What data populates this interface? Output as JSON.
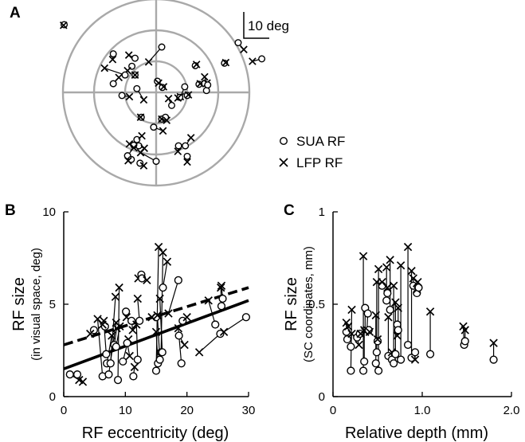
{
  "panels": {
    "a": {
      "letter": "A",
      "scale_bar_label": "10 deg"
    },
    "b": {
      "letter": "B"
    },
    "c": {
      "letter": "C"
    }
  },
  "legend": {
    "sua_label": "SUA RF",
    "lfp_label": "LFP RF"
  },
  "chart_data": [
    {
      "type": "scatter",
      "panel": "A",
      "description": "Polar plot of receptive field centers in visual space (deg), paired SUA (circle) and LFP (cross) RFs joined by lines",
      "rings_deg": [
        5,
        10,
        15
      ],
      "scale_bar_deg": 10,
      "pairs": [
        {
          "sua": [
            -14.8,
            10.9
          ],
          "lfp": [
            -14.9,
            10.8
          ]
        },
        {
          "sua": [
            -6.9,
            6.2
          ],
          "lfp": [
            -7.0,
            5.3
          ]
        },
        {
          "sua": [
            -3.4,
            5.5
          ],
          "lfp": [
            -4.4,
            6.0
          ]
        },
        {
          "sua": [
            -3.9,
            4.2
          ],
          "lfp": [
            -4.6,
            3.5
          ]
        },
        {
          "sua": [
            -5.0,
            2.8
          ],
          "lfp": [
            -8.3,
            3.9
          ]
        },
        {
          "sua": [
            -3.4,
            2.8
          ],
          "lfp": [
            -3.4,
            2.8
          ]
        },
        {
          "sua": [
            -6.9,
            1.4
          ],
          "lfp": [
            -6.0,
            2.4
          ]
        },
        {
          "sua": [
            0.9,
            7.3
          ],
          "lfp": [
            -1.2,
            4.9
          ]
        },
        {
          "sua": [
            -5.5,
            -0.5
          ],
          "lfp": [
            -4.3,
            -0.7
          ]
        },
        {
          "sua": [
            -3.1,
            0.6
          ],
          "lfp": [
            -2.0,
            -1.2
          ]
        },
        {
          "sua": [
            0.2,
            1.8
          ],
          "lfp": [
            0.4,
            1.5
          ]
        },
        {
          "sua": [
            1.0,
            0.8
          ],
          "lfp": [
            1.2,
            0.9
          ]
        },
        {
          "sua": [
            2.5,
            -2.1
          ],
          "lfp": [
            2.0,
            -1.0
          ]
        },
        {
          "sua": [
            4.6,
            0.9
          ],
          "lfp": [
            3.9,
            -0.7
          ]
        },
        {
          "sua": [
            3.8,
            -0.8
          ],
          "lfp": [
            3.5,
            -0.9
          ]
        },
        {
          "sua": [
            5.0,
            -0.5
          ],
          "lfp": [
            5.2,
            -0.4
          ]
        },
        {
          "sua": [
            8.1,
            0.3
          ],
          "lfp": [
            8.2,
            1.5
          ]
        },
        {
          "sua": [
            8.3,
            1.2
          ],
          "lfp": [
            7.8,
            2.5
          ]
        },
        {
          "sua": [
            6.3,
            4.3
          ],
          "lfp": [
            6.5,
            4.5
          ]
        },
        {
          "sua": [
            11.0,
            4.7
          ],
          "lfp": [
            11.2,
            4.8
          ]
        },
        {
          "sua": [
            6.9,
            1.3
          ],
          "lfp": [
            7.1,
            1.4
          ]
        },
        {
          "sua": [
            13.2,
            8.0
          ],
          "lfp": [
            14.1,
            6.9
          ]
        },
        {
          "sua": [
            17.0,
            5.4
          ],
          "lfp": [
            15.5,
            5.0
          ]
        },
        {
          "sua": [
            0.9,
            -4.3
          ],
          "lfp": [
            0.9,
            -4.3
          ]
        },
        {
          "sua": [
            1.5,
            -4.0
          ],
          "lfp": [
            1.7,
            -4.5
          ]
        },
        {
          "sua": [
            -0.4,
            -5.6
          ],
          "lfp": [
            1.1,
            -6.2
          ]
        },
        {
          "sua": [
            -3.1,
            -7.6
          ],
          "lfp": [
            -2.3,
            -7.0
          ]
        },
        {
          "sua": [
            -2.8,
            -8.6
          ],
          "lfp": [
            -1.9,
            -9.0
          ]
        },
        {
          "sua": [
            -3.6,
            -8.5
          ],
          "lfp": [
            -4.3,
            -8.3
          ]
        },
        {
          "sua": [
            -4.6,
            -10.2
          ],
          "lfp": [
            -3.6,
            -8.9
          ]
        },
        {
          "sua": [
            0.0,
            -11.1
          ],
          "lfp": [
            -2.5,
            -9.7
          ]
        },
        {
          "sua": [
            -4.0,
            -10.8
          ],
          "lfp": [
            -4.5,
            -11.0
          ]
        },
        {
          "sua": [
            -2.6,
            -11.4
          ],
          "lfp": [
            -2.0,
            -11.8
          ]
        },
        {
          "sua": [
            4.7,
            -8.6
          ],
          "lfp": [
            5.6,
            -7.3
          ]
        },
        {
          "sua": [
            3.6,
            -8.6
          ],
          "lfp": [
            3.5,
            -9.5
          ]
        },
        {
          "sua": [
            5.0,
            -10.3
          ],
          "lfp": [
            5.0,
            -11.2
          ]
        },
        {
          "sua": [
            -2.4,
            -4.0
          ],
          "lfp": [
            -2.5,
            -4.0
          ]
        }
      ]
    },
    {
      "type": "scatter",
      "panel": "B",
      "title": "",
      "xlabel": "RF eccentricity (deg)",
      "ylabel": "RF size",
      "ylabel_sub": "(in visual space, deg)",
      "xlim": [
        0,
        30
      ],
      "ylim": [
        0,
        10
      ],
      "xticks": [
        "0",
        "10",
        "20",
        "30"
      ],
      "yticks": [
        "0",
        "5",
        "10"
      ],
      "fits": [
        {
          "style": "solid",
          "points": [
            [
              0,
              1.5
            ],
            [
              30,
              5.2
            ]
          ]
        },
        {
          "style": "dashed",
          "points": [
            [
              0,
              2.8
            ],
            [
              30,
              5.9
            ]
          ]
        }
      ],
      "pairs": [
        {
          "sua": [
            1.0,
            1.2
          ],
          "lfp": [
            2.5,
            0.9
          ]
        },
        {
          "sua": [
            2.2,
            1.2
          ],
          "lfp": [
            3.1,
            0.8
          ]
        },
        {
          "sua": [
            4.9,
            3.6
          ],
          "lfp": [
            4.3,
            3.4
          ]
        },
        {
          "sua": [
            6.3,
            1.1
          ],
          "lfp": [
            5.5,
            4.2
          ]
        },
        {
          "sua": [
            6.7,
            3.8
          ],
          "lfp": [
            6.3,
            3.9
          ]
        },
        {
          "sua": [
            6.9,
            2.3
          ],
          "lfp": [
            6.5,
            4.1
          ]
        },
        {
          "sua": [
            7.0,
            1.8
          ],
          "lfp": [
            7.8,
            3.3
          ]
        },
        {
          "sua": [
            7.3,
            1.2
          ],
          "lfp": [
            8.5,
            4.0
          ]
        },
        {
          "sua": [
            7.6,
            1.8
          ],
          "lfp": [
            8.4,
            5.4
          ]
        },
        {
          "sua": [
            8.2,
            2.8
          ],
          "lfp": [
            8.6,
            3.7
          ]
        },
        {
          "sua": [
            8.5,
            2.7
          ],
          "lfp": [
            9.1,
            3.8
          ]
        },
        {
          "sua": [
            8.8,
            0.9
          ],
          "lfp": [
            9.0,
            5.9
          ]
        },
        {
          "sua": [
            9.6,
            1.9
          ],
          "lfp": [
            10.5,
            3.1
          ]
        },
        {
          "sua": [
            10.1,
            4.6
          ],
          "lfp": [
            10.2,
            4.3
          ]
        },
        {
          "sua": [
            10.3,
            2.9
          ],
          "lfp": [
            10.7,
            2.2
          ]
        },
        {
          "sua": [
            11.0,
            4.1
          ],
          "lfp": [
            11.2,
            3.6
          ]
        },
        {
          "sua": [
            11.3,
            1.1
          ],
          "lfp": [
            11.5,
            1.6
          ]
        },
        {
          "sua": [
            12.0,
            2.0
          ],
          "lfp": [
            11.8,
            3.9
          ]
        },
        {
          "sua": [
            12.3,
            4.1
          ],
          "lfp": [
            12.0,
            5.3
          ]
        },
        {
          "sua": [
            12.6,
            6.6
          ],
          "lfp": [
            12.1,
            6.4
          ]
        },
        {
          "sua": [
            12.7,
            6.4
          ],
          "lfp": [
            13.5,
            6.3
          ]
        },
        {
          "sua": [
            15.0,
            4.3
          ],
          "lfp": [
            14.3,
            4.3
          ]
        },
        {
          "sua": [
            15.0,
            1.4
          ],
          "lfp": [
            15.4,
            8.1
          ]
        },
        {
          "sua": [
            15.3,
            1.8
          ],
          "lfp": [
            15.0,
            3.5
          ]
        },
        {
          "sua": [
            15.6,
            2.0
          ],
          "lfp": [
            15.2,
            4.4
          ]
        },
        {
          "sua": [
            15.8,
            2.4
          ],
          "lfp": [
            16.1,
            7.8
          ]
        },
        {
          "sua": [
            16.0,
            2.4
          ],
          "lfp": [
            15.6,
            5.3
          ]
        },
        {
          "sua": [
            16.1,
            5.9
          ],
          "lfp": [
            16.8,
            7.3
          ]
        },
        {
          "sua": [
            19.1,
            1.8
          ],
          "lfp": [
            18.6,
            3.7
          ]
        },
        {
          "sua": [
            18.7,
            3.3
          ],
          "lfp": [
            19.6,
            2.8
          ]
        },
        {
          "sua": [
            19.3,
            4.1
          ],
          "lfp": [
            20.0,
            4.3
          ]
        },
        {
          "sua": [
            18.6,
            6.3
          ],
          "lfp": [
            17.0,
            4.5
          ]
        },
        {
          "sua": [
            24.6,
            3.9
          ],
          "lfp": [
            23.5,
            5.2
          ]
        },
        {
          "sua": [
            25.4,
            3.4
          ],
          "lfp": [
            22.0,
            2.4
          ]
        },
        {
          "sua": [
            25.6,
            4.9
          ],
          "lfp": [
            25.5,
            5.9
          ]
        },
        {
          "sua": [
            25.8,
            5.3
          ],
          "lfp": [
            25.6,
            6.0
          ]
        },
        {
          "sua": [
            29.6,
            4.3
          ],
          "lfp": [
            26.0,
            3.5
          ]
        }
      ]
    },
    {
      "type": "scatter",
      "panel": "C",
      "title": "",
      "xlabel": "Relative depth (mm)",
      "ylabel": "RF size",
      "ylabel_sub": "(SC coordinates, mm)",
      "xlim": [
        0,
        2.0
      ],
      "ylim": [
        0,
        1
      ],
      "xticks": [
        "0",
        "1.0",
        "2.0"
      ],
      "yticks": [
        "0",
        "0.5",
        "1"
      ],
      "pairs": [
        {
          "sua": [
            0.15,
            0.35
          ],
          "lfp": [
            0.15,
            0.4
          ]
        },
        {
          "sua": [
            0.16,
            0.31
          ],
          "lfp": [
            0.17,
            0.38
          ]
        },
        {
          "sua": [
            0.2,
            0.14
          ],
          "lfp": [
            0.21,
            0.47
          ]
        },
        {
          "sua": [
            0.2,
            0.27
          ],
          "lfp": [
            0.21,
            0.34
          ]
        },
        {
          "sua": [
            0.27,
            0.32
          ],
          "lfp": [
            0.29,
            0.28
          ]
        },
        {
          "sua": [
            0.3,
            0.34
          ],
          "lfp": [
            0.31,
            0.34
          ]
        },
        {
          "sua": [
            0.34,
            0.14
          ],
          "lfp": [
            0.34,
            0.76
          ]
        },
        {
          "sua": [
            0.35,
            0.19
          ],
          "lfp": [
            0.35,
            0.36
          ]
        },
        {
          "sua": [
            0.36,
            0.48
          ],
          "lfp": [
            0.36,
            0.35
          ]
        },
        {
          "sua": [
            0.39,
            0.45
          ],
          "lfp": [
            0.38,
            0.36
          ]
        },
        {
          "sua": [
            0.4,
            0.36
          ],
          "lfp": [
            0.41,
            0.35
          ]
        },
        {
          "sua": [
            0.48,
            0.18
          ],
          "lfp": [
            0.48,
            0.44
          ]
        },
        {
          "sua": [
            0.49,
            0.24
          ],
          "lfp": [
            0.49,
            0.62
          ]
        },
        {
          "sua": [
            0.5,
            0.3
          ],
          "lfp": [
            0.5,
            0.31
          ]
        },
        {
          "sua": [
            0.51,
            0.14
          ],
          "lfp": [
            0.51,
            0.69
          ]
        },
        {
          "sua": [
            0.55,
            0.6
          ],
          "lfp": [
            0.55,
            0.62
          ]
        },
        {
          "sua": [
            0.6,
            0.52
          ],
          "lfp": [
            0.6,
            0.7
          ]
        },
        {
          "sua": [
            0.61,
            0.56
          ],
          "lfp": [
            0.61,
            0.59
          ]
        },
        {
          "sua": [
            0.62,
            0.22
          ],
          "lfp": [
            0.62,
            0.43
          ]
        },
        {
          "sua": [
            0.64,
            0.47
          ],
          "lfp": [
            0.64,
            0.74
          ]
        },
        {
          "sua": [
            0.66,
            0.2
          ],
          "lfp": [
            0.66,
            0.24
          ]
        },
        {
          "sua": [
            0.68,
            0.18
          ],
          "lfp": [
            0.68,
            0.6
          ]
        },
        {
          "sua": [
            0.7,
            0.23
          ],
          "lfp": [
            0.7,
            0.51
          ]
        },
        {
          "sua": [
            0.72,
            0.39
          ],
          "lfp": [
            0.72,
            0.33
          ]
        },
        {
          "sua": [
            0.73,
            0.36
          ],
          "lfp": [
            0.73,
            0.48
          ]
        },
        {
          "sua": [
            0.76,
            0.2
          ],
          "lfp": [
            0.76,
            0.71
          ]
        },
        {
          "sua": [
            0.84,
            0.28
          ],
          "lfp": [
            0.84,
            0.81
          ]
        },
        {
          "sua": [
            0.88,
            0.21
          ],
          "lfp": [
            0.88,
            0.68
          ]
        },
        {
          "sua": [
            0.9,
            0.6
          ],
          "lfp": [
            0.9,
            0.64
          ]
        },
        {
          "sua": [
            0.92,
            0.24
          ],
          "lfp": [
            0.92,
            0.2
          ]
        },
        {
          "sua": [
            0.94,
            0.56
          ],
          "lfp": [
            0.94,
            0.58
          ]
        },
        {
          "sua": [
            0.96,
            0.59
          ],
          "lfp": [
            0.95,
            0.62
          ]
        },
        {
          "sua": [
            1.09,
            0.23
          ],
          "lfp": [
            1.09,
            0.46
          ]
        },
        {
          "sua": [
            1.47,
            0.28
          ],
          "lfp": [
            1.46,
            0.38
          ]
        },
        {
          "sua": [
            1.48,
            0.3
          ],
          "lfp": [
            1.48,
            0.36
          ]
        },
        {
          "sua": [
            1.8,
            0.2
          ],
          "lfp": [
            1.8,
            0.29
          ]
        }
      ]
    }
  ]
}
